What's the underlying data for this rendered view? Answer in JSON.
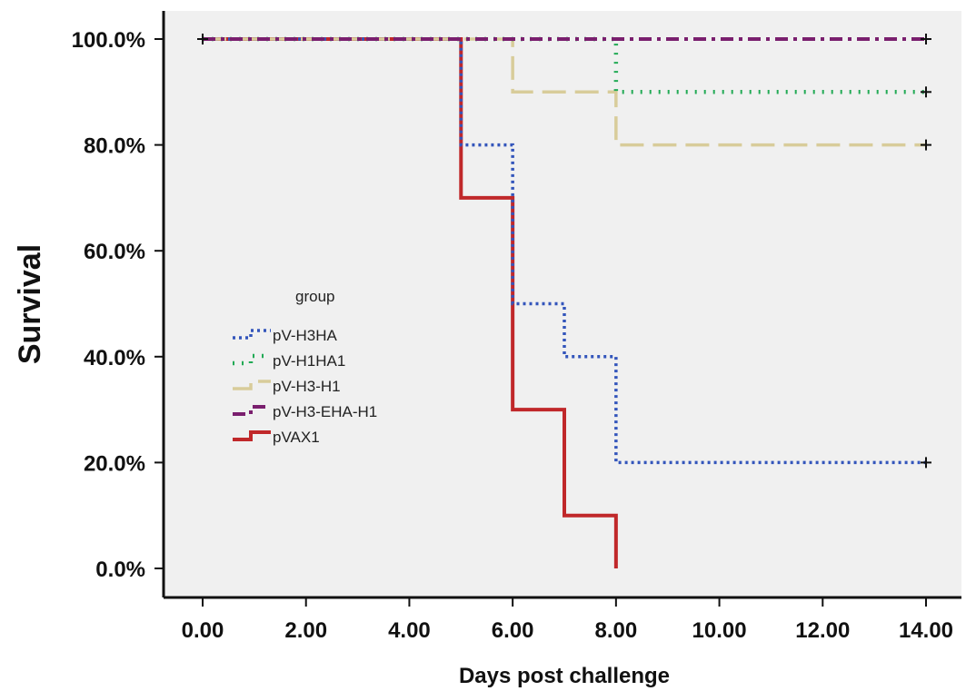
{
  "colors": {
    "plot_background": "#f0f0f0",
    "axis": "#111111"
  },
  "chart_data": {
    "type": "line",
    "subtype": "kaplan-meier step survival curves",
    "title": "",
    "xlabel": "Days post challenge",
    "ylabel": "Survival",
    "xlim": [
      0,
      14
    ],
    "ylim": [
      0,
      100
    ],
    "x_tick_labels": [
      "0.00",
      "2.00",
      "4.00",
      "6.00",
      "8.00",
      "10.00",
      "12.00",
      "14.00"
    ],
    "y_tick_labels": [
      "0.0%",
      "20.0%",
      "40.0%",
      "60.0%",
      "80.0%",
      "100.0%"
    ],
    "grid": false,
    "censor_marker": "+",
    "legend": {
      "title": "group",
      "placement": "center-left",
      "entries": [
        "pV-H3HA",
        "pV-H1HA1",
        "pV-H3-H1",
        "pV-H3-EHA-H1",
        "pVAX1"
      ]
    },
    "series": [
      {
        "name": "pV-H3HA",
        "color": "#3355bb",
        "dash": "dotted",
        "x": [
          0,
          5,
          6,
          7,
          8,
          14
        ],
        "y": [
          100,
          80,
          50,
          40,
          20,
          20
        ],
        "censored_x": [
          14
        ]
      },
      {
        "name": "pV-H1HA1",
        "color": "#22aa55",
        "dash": "dotted-wide",
        "x": [
          0,
          8,
          14
        ],
        "y": [
          100,
          90,
          90
        ],
        "censored_x": [
          14
        ]
      },
      {
        "name": "pV-H3-H1",
        "color": "#d8cc9a",
        "dash": "long-dash",
        "x": [
          0,
          6,
          8,
          14
        ],
        "y": [
          100,
          90,
          80,
          80
        ],
        "censored_x": [
          14
        ]
      },
      {
        "name": "pV-H3-EHA-H1",
        "color": "#7a1f6e",
        "dash": "dash-dot",
        "x": [
          0,
          14
        ],
        "y": [
          100,
          100
        ],
        "censored_x": [
          14
        ]
      },
      {
        "name": "pVAX1",
        "color": "#c0282a",
        "dash": "solid",
        "x": [
          0,
          5,
          6,
          7,
          8
        ],
        "y": [
          100,
          70,
          30,
          10,
          0
        ],
        "censored_x": []
      }
    ]
  }
}
